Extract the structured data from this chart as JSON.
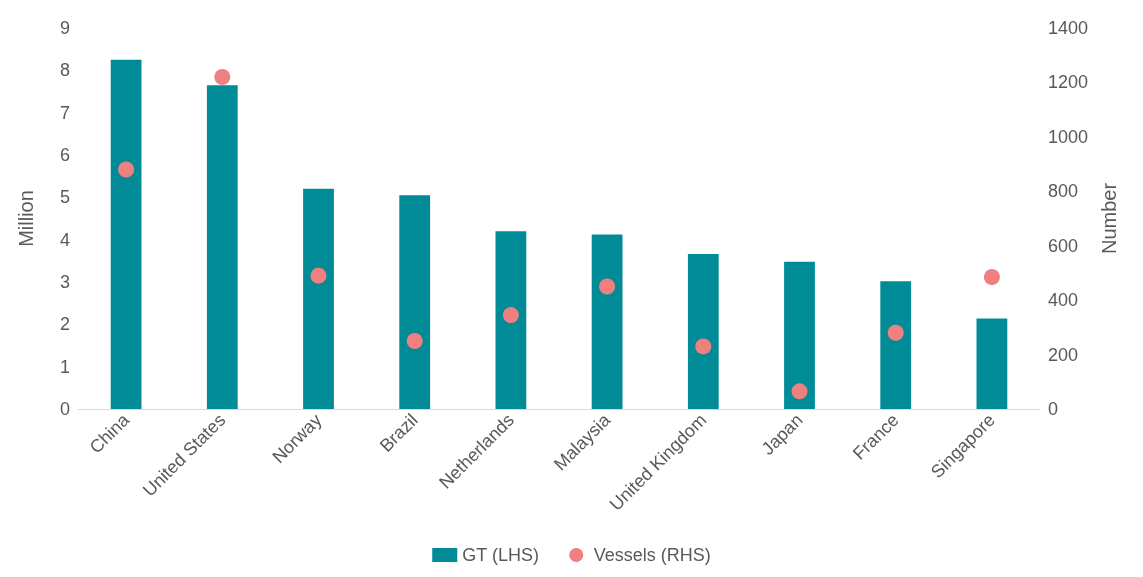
{
  "chart_data": {
    "type": "bar",
    "ylabel": "Million",
    "y2label": "Number",
    "categories": [
      "China",
      "United States",
      "Norway",
      "Brazil",
      "Netherlands",
      "Malaysia",
      "United Kingdom",
      "Japan",
      "France",
      "Singapore"
    ],
    "series": [
      {
        "name": "GT (LHS)",
        "type": "bar",
        "color": "#008b96",
        "values": [
          8.25,
          7.65,
          5.2,
          5.05,
          4.2,
          4.12,
          3.66,
          3.48,
          3.02,
          2.14
        ]
      },
      {
        "name": "Vessels (RHS)",
        "type": "scatter",
        "axis": "y2",
        "marker": "circle",
        "color": "#f08080",
        "x": [
          "China",
          "United States",
          "Norway",
          "Brazil",
          "Netherlands",
          "Malaysia",
          "United Kingdom",
          "Japan",
          "France",
          "Singapore"
        ],
        "values": [
          880,
          1220,
          490,
          250,
          345,
          450,
          230,
          65,
          280,
          485
        ]
      }
    ],
    "ylim": [
      0,
      9
    ],
    "yticks": [
      0,
      1,
      2,
      3,
      4,
      5,
      6,
      7,
      8,
      9
    ],
    "y2lim": [
      0,
      1400
    ],
    "y2ticks": [
      0,
      200,
      400,
      600,
      800,
      1000,
      1200,
      1400
    ],
    "grid": false,
    "legend": "bottom"
  }
}
